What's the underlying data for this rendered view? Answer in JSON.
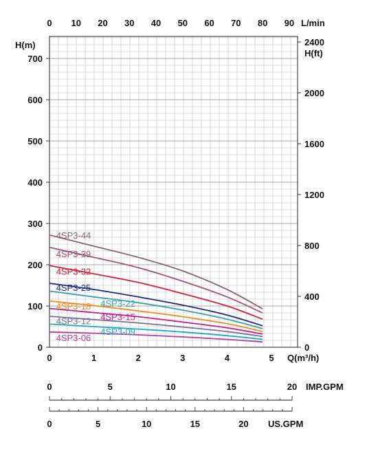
{
  "chart_data": {
    "type": "line",
    "title": "",
    "axes": {
      "flow_m3h": {
        "unit": "Q(m³/h)",
        "range": [
          0,
          5
        ],
        "ticks": [
          0,
          1,
          2,
          3,
          4,
          5
        ]
      },
      "flow_lmin": {
        "unit": "L/min",
        "range": [
          0,
          90
        ],
        "ticks": [
          0,
          10,
          20,
          30,
          40,
          50,
          60,
          70,
          80,
          90
        ]
      },
      "head_m": {
        "unit": "H(m)",
        "range": [
          0,
          700
        ],
        "ticks": [
          0,
          100,
          200,
          300,
          400,
          500,
          600,
          700
        ]
      },
      "head_ft": {
        "unit": "H(ft)",
        "range": [
          0,
          2400
        ],
        "ticks": [
          0,
          400,
          800,
          1200,
          1600,
          2000,
          2400
        ]
      },
      "imp_gpm": {
        "unit": "IMP.GPM",
        "range": [
          0,
          20
        ],
        "ticks": [
          0,
          5,
          10,
          15,
          20
        ]
      },
      "us_gpm": {
        "unit": "US.GPM",
        "range": [
          0,
          25
        ],
        "ticks": [
          0,
          5,
          10,
          15,
          20
        ]
      }
    },
    "grid": true,
    "series": [
      {
        "name": "4SP3-44",
        "color": "#8c6470",
        "x": [
          0,
          1,
          2,
          3,
          4,
          4.8
        ],
        "y": [
          272,
          245,
          218,
          185,
          140,
          93
        ]
      },
      {
        "name": "4SP3-39",
        "color": "#a0507c",
        "x": [
          0,
          1,
          2,
          3,
          4,
          4.8
        ],
        "y": [
          242,
          218,
          193,
          160,
          122,
          83
        ]
      },
      {
        "name": "4SP3-32",
        "color": "#d0203a",
        "x": [
          0,
          1,
          2,
          3,
          4,
          4.8
        ],
        "y": [
          198,
          178,
          157,
          130,
          100,
          68
        ]
      },
      {
        "name": "4SP3-25",
        "color": "#1c2a80",
        "x": [
          0,
          1,
          2,
          3,
          4,
          4.8
        ],
        "y": [
          155,
          140,
          122,
          102,
          78,
          52
        ]
      },
      {
        "name": "4SP3-22",
        "color": "#3aa0b0",
        "x": [
          0,
          1,
          2,
          3,
          4,
          4.8
        ],
        "y": [
          136,
          122,
          108,
          90,
          68,
          45
        ]
      },
      {
        "name": "4SP3-18",
        "color": "#f08c20",
        "x": [
          0,
          1,
          2,
          3,
          4,
          4.8
        ],
        "y": [
          112,
          101,
          88,
          74,
          57,
          38
        ]
      },
      {
        "name": "4SP3-15",
        "color": "#c0208a",
        "x": [
          0,
          1,
          2,
          3,
          4,
          4.8
        ],
        "y": [
          94,
          84,
          74,
          61,
          47,
          32
        ]
      },
      {
        "name": "4SP3-12",
        "color": "#7a6f98",
        "x": [
          0,
          1,
          2,
          3,
          4,
          4.8
        ],
        "y": [
          75,
          67,
          59,
          49,
          38,
          26
        ]
      },
      {
        "name": "4SP3-09",
        "color": "#20a8c8",
        "x": [
          0,
          1,
          2,
          3,
          4,
          4.8
        ],
        "y": [
          56,
          50,
          44,
          37,
          28,
          19
        ]
      },
      {
        "name": "4SP3-06",
        "color": "#b040a0",
        "x": [
          0,
          1,
          2,
          3,
          4,
          4.8
        ],
        "y": [
          37,
          34,
          30,
          25,
          19,
          13
        ]
      }
    ]
  }
}
